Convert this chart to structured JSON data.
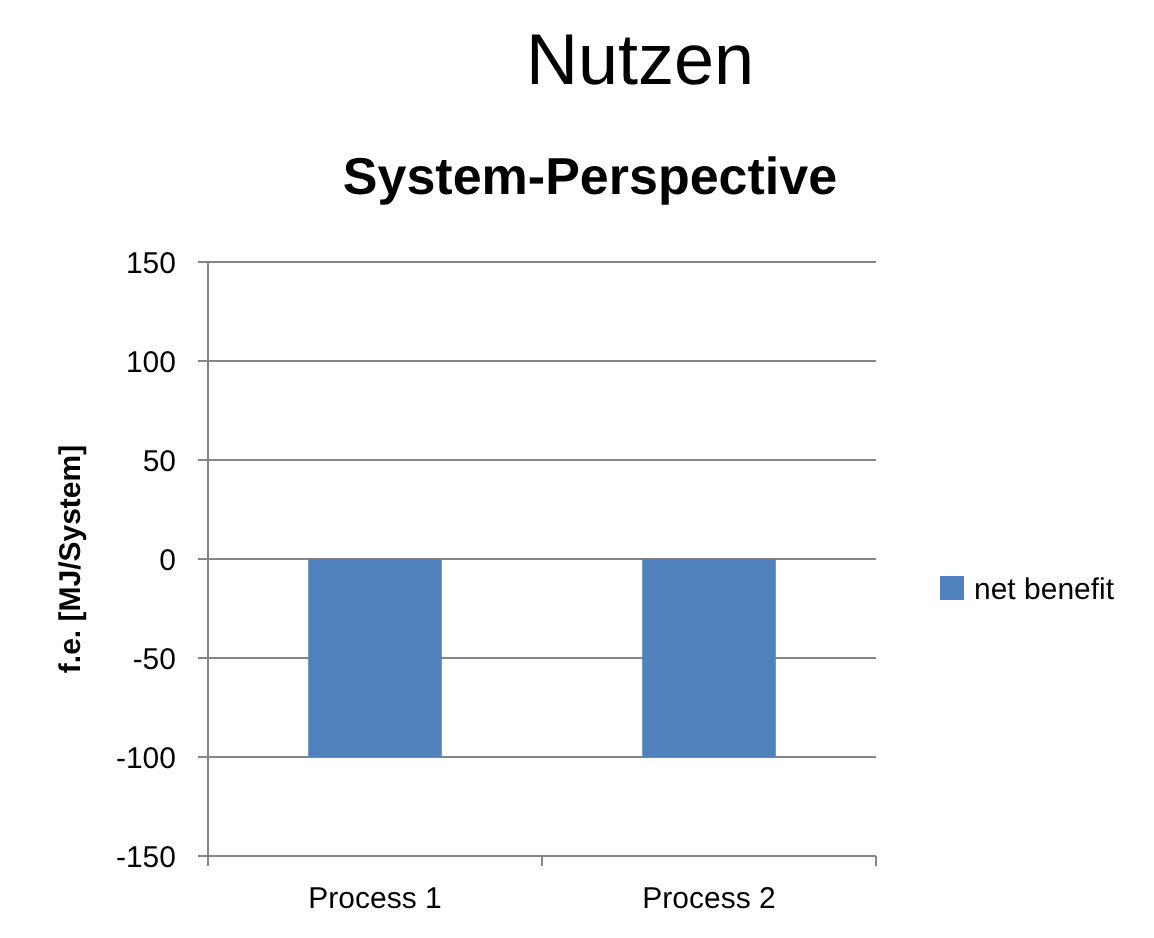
{
  "chart_data": {
    "type": "bar",
    "title": "Nutzen",
    "subtitle": "System-Perspective",
    "ylabel": "f.e. [MJ/System]",
    "categories": [
      "Process 1",
      "Process 2"
    ],
    "series": [
      {
        "name": "net benefit",
        "color": "#4f81bd",
        "values": [
          -100,
          -100
        ]
      }
    ],
    "ylim": [
      -150,
      150
    ],
    "yticks": [
      -150,
      -100,
      -50,
      0,
      50,
      100,
      150
    ],
    "grid": "y",
    "legend": "right"
  }
}
